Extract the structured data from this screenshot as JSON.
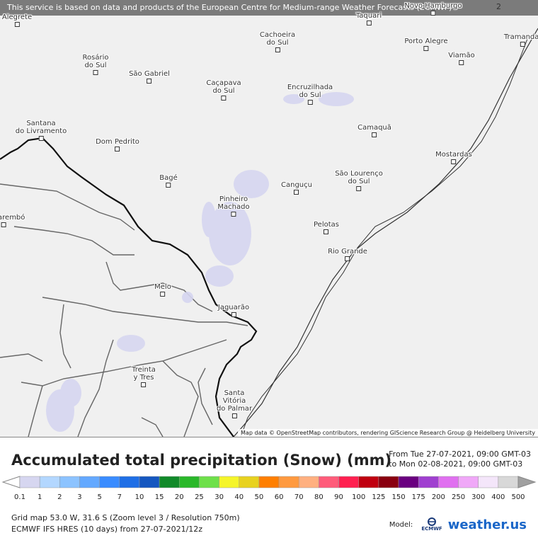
{
  "map": {
    "banner": "This service is based on data and products of the European Centre for Medium-range Weather Forecasts (ECMWF)",
    "attribution": "Map data © OpenStreetMap contributors, rendering GIScience Research Group @ Heidelberg University",
    "edge_label": "2",
    "cities": [
      {
        "name": "Alegrete"
      },
      {
        "name": "Rosário\ndo Sul"
      },
      {
        "name": "São Gabriel"
      },
      {
        "name": "Cachoeira\ndo Sul"
      },
      {
        "name": "Taquari"
      },
      {
        "name": "Novo Hamburgo"
      },
      {
        "name": "Porto Alegre"
      },
      {
        "name": "Viamão"
      },
      {
        "name": "Tramandaí"
      },
      {
        "name": "Caçapava\ndo Sul"
      },
      {
        "name": "Encruzilhada\ndo Sul"
      },
      {
        "name": "Santana\ndo Livramento"
      },
      {
        "name": "Dom Pedrito"
      },
      {
        "name": "Camaquã"
      },
      {
        "name": "Mostardas"
      },
      {
        "name": "Bagé"
      },
      {
        "name": "Pinheiro\nMachado"
      },
      {
        "name": "Canguçu"
      },
      {
        "name": "São Lourenço\ndo Sul"
      },
      {
        "name": "Tacuarembó"
      },
      {
        "name": "Pelotas"
      },
      {
        "name": "Rio Grande"
      },
      {
        "name": "Melo"
      },
      {
        "name": "Jaguarão"
      },
      {
        "name": "Treinta\ny Tres"
      },
      {
        "name": "Santa\nVitória\ndo Palmar"
      }
    ]
  },
  "legend": {
    "title": "Accumulated total precipitation (Snow) (mm)",
    "from": "From Tue 27-07-2021, 09:00 GMT-03",
    "to": "to Mon 02-08-2021, 09:00 GMT-03",
    "scale": [
      "0.1",
      "1",
      "2",
      "3",
      "5",
      "7",
      "10",
      "15",
      "20",
      "25",
      "30",
      "40",
      "50",
      "60",
      "70",
      "80",
      "90",
      "100",
      "125",
      "150",
      "175",
      "200",
      "250",
      "300",
      "400",
      "500"
    ],
    "colors": [
      "#d6d6f0",
      "#b3d7ff",
      "#8cc3ff",
      "#64a9ff",
      "#3a8cff",
      "#1f6fe6",
      "#1557c0",
      "#118a2a",
      "#2ab82a",
      "#6ee04a",
      "#f5f52a",
      "#e8d21f",
      "#ff7f00",
      "#ff9a40",
      "#ffb080",
      "#ff5c7a",
      "#ff2050",
      "#c00010",
      "#8a0010",
      "#6a0080",
      "#a040d0",
      "#e070f0",
      "#f0a8f8",
      "#f4e6fa",
      "#d8d8d8"
    ]
  },
  "footer": {
    "line1": "Grid map 53.0 W, 31.6 S (Zoom level 3 / Resolution 750m)",
    "line2": "ECMWF IFS HRES (10 days) from 27-07-2021/12z"
  },
  "brand": {
    "model_label": "Model:",
    "ecmwf_label": "ECMWF",
    "site_name": "weather.us"
  }
}
